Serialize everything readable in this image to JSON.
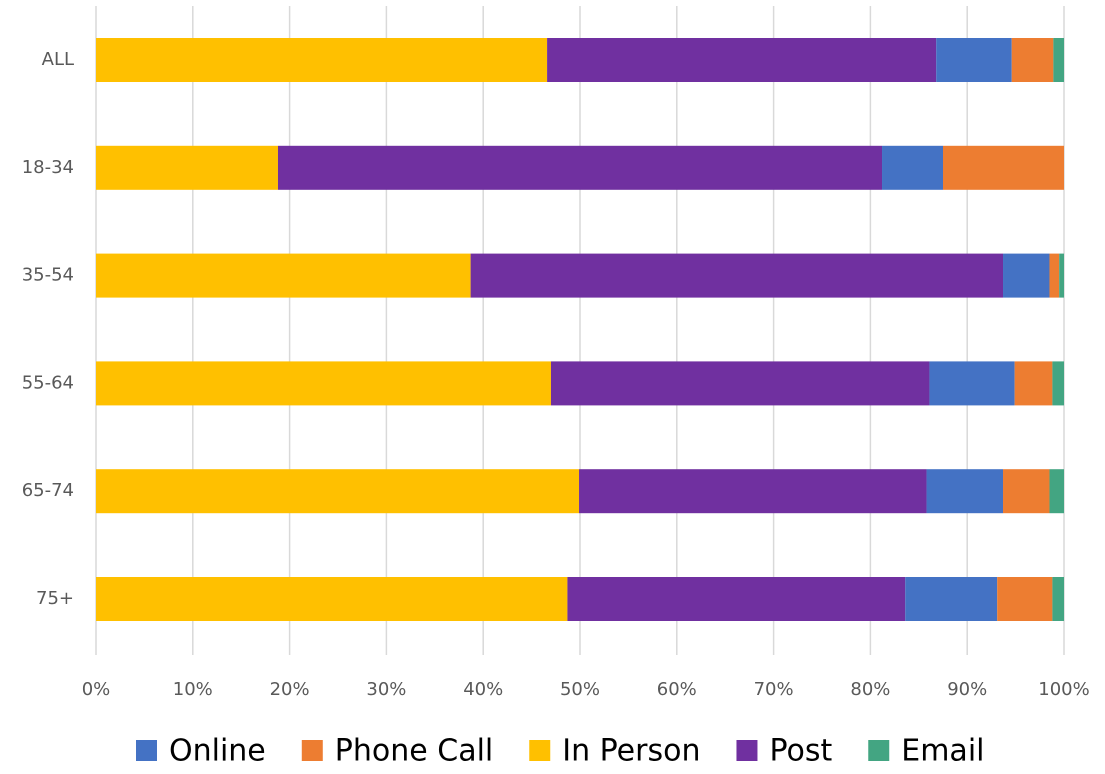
{
  "chart_data": {
    "type": "bar",
    "orientation": "horizontal",
    "stacked": true,
    "categories": [
      "ALL",
      "18-34",
      "35-54",
      "55-64",
      "65-74",
      "75+"
    ],
    "series": [
      {
        "name": "In Person",
        "color": "#ffc000",
        "values": [
          46.6,
          18.8,
          38.7,
          47.0,
          49.9,
          48.7
        ]
      },
      {
        "name": "Post",
        "color": "#7030a0",
        "values": [
          40.2,
          62.4,
          55.0,
          39.1,
          35.9,
          34.9
        ]
      },
      {
        "name": "Online",
        "color": "#4472c4",
        "values": [
          7.8,
          6.3,
          4.8,
          8.8,
          7.9,
          9.5
        ]
      },
      {
        "name": "Phone Call",
        "color": "#ed7d31",
        "values": [
          4.3,
          12.5,
          1.0,
          3.9,
          4.8,
          5.7
        ]
      },
      {
        "name": "Email",
        "color": "#43a582",
        "values": [
          1.1,
          0,
          0.5,
          1.2,
          1.5,
          1.2
        ]
      }
    ],
    "legend_order": [
      "Online",
      "Phone Call",
      "In Person",
      "Post",
      "Email"
    ],
    "xlim": [
      0,
      100
    ],
    "xticks": [
      {
        "value": 0,
        "label": "0%"
      },
      {
        "value": 10,
        "label": "10%"
      },
      {
        "value": 20,
        "label": "20%"
      },
      {
        "value": 30,
        "label": "30%"
      },
      {
        "value": 40,
        "label": "40%"
      },
      {
        "value": 50,
        "label": "50%"
      },
      {
        "value": 60,
        "label": "60%"
      },
      {
        "value": 70,
        "label": "70%"
      },
      {
        "value": 80,
        "label": "80%"
      },
      {
        "value": 90,
        "label": "90%"
      },
      {
        "value": 100,
        "label": "100%"
      }
    ],
    "grid": true,
    "legend": "bottom"
  }
}
